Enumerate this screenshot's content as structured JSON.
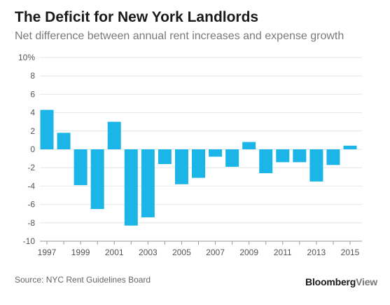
{
  "title": "The Deficit for New York Landlords",
  "subtitle": "Net difference between annual rent increases and expense growth",
  "source": "Source: NYC Rent Guidelines Board",
  "brand": {
    "main": "Bloomberg",
    "accent": "View"
  },
  "colors": {
    "bar": "#1cb5e8",
    "grid": "#e6e6e6",
    "axis": "#999999"
  },
  "chart_data": {
    "type": "bar",
    "x": [
      1997,
      1998,
      1999,
      2000,
      2001,
      2002,
      2003,
      2004,
      2005,
      2006,
      2007,
      2008,
      2009,
      2010,
      2011,
      2012,
      2013,
      2014,
      2015
    ],
    "values": [
      4.3,
      1.8,
      -3.9,
      -6.5,
      3.0,
      -8.3,
      -7.4,
      -1.6,
      -3.8,
      -3.1,
      -0.8,
      -1.9,
      0.8,
      -2.6,
      -1.4,
      -1.4,
      -3.5,
      -1.7,
      0.4
    ],
    "xtick_labels": [
      "1997",
      "1999",
      "2001",
      "2003",
      "2005",
      "2007",
      "2009",
      "2011",
      "2013",
      "2015"
    ],
    "ytick_labels": [
      "10%",
      "8",
      "6",
      "4",
      "2",
      "0",
      "-2",
      "-4",
      "-6",
      "-8",
      "-10"
    ],
    "ylim": [
      -10,
      10
    ],
    "title": "The Deficit for New York Landlords",
    "xlabel": "",
    "ylabel": "",
    "grid": true,
    "legend": "none"
  }
}
